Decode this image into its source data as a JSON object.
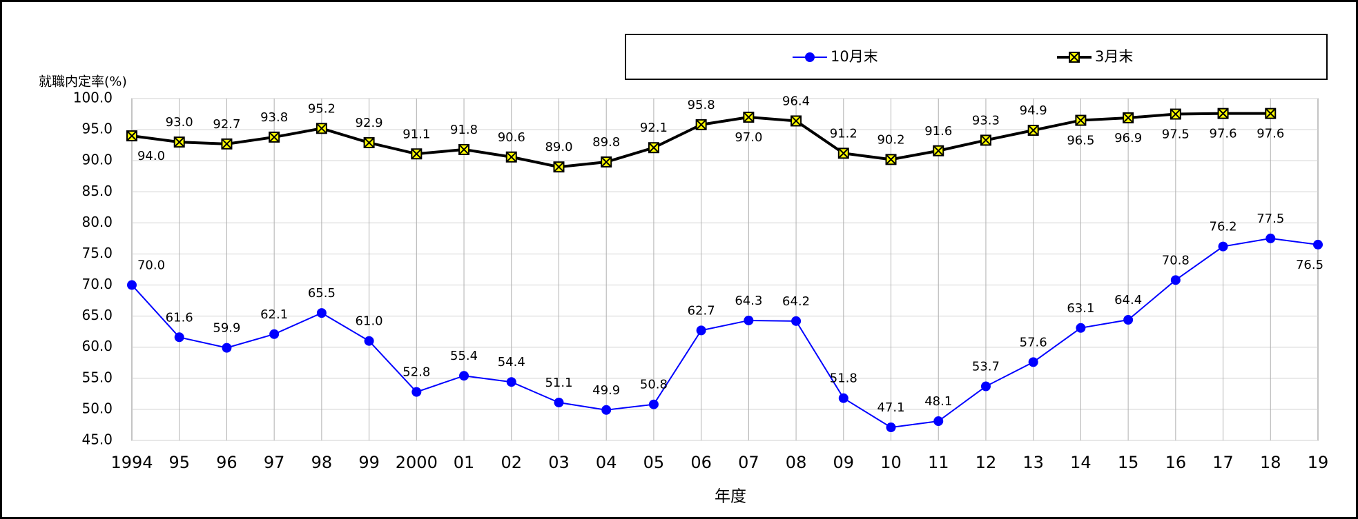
{
  "chart_data": {
    "type": "line",
    "y_label": "就職内定率(%)",
    "x_label": "年度",
    "categories": [
      "1994",
      "95",
      "96",
      "97",
      "98",
      "99",
      "2000",
      "01",
      "02",
      "03",
      "04",
      "05",
      "06",
      "07",
      "08",
      "09",
      "10",
      "11",
      "12",
      "13",
      "14",
      "15",
      "16",
      "17",
      "18",
      "19"
    ],
    "series": [
      {
        "name": "10月末",
        "color": "#0000ff",
        "marker": "circle",
        "values": [
          70.0,
          61.6,
          59.9,
          62.1,
          65.5,
          61.0,
          52.8,
          55.4,
          54.4,
          51.1,
          49.9,
          50.8,
          62.7,
          64.3,
          64.2,
          51.8,
          47.1,
          48.1,
          53.7,
          57.6,
          63.1,
          64.4,
          70.8,
          76.2,
          77.5,
          76.5
        ],
        "value_labels": [
          "70.0",
          "61.6",
          "59.9",
          "62.1",
          "65.5",
          "61.0",
          "52.8",
          "55.4",
          "54.4",
          "51.1",
          "49.9",
          "50.8",
          "62.7",
          "64.3",
          "64.2",
          "51.8",
          "47.1",
          "48.1",
          "53.7",
          "57.6",
          "63.1",
          "64.4",
          "70.8",
          "76.2",
          "77.5",
          "76.5"
        ]
      },
      {
        "name": "3月末",
        "color": "#000000",
        "marker": "x-square",
        "marker_fill": "#ffff00",
        "values": [
          94.0,
          93.0,
          92.7,
          93.8,
          95.2,
          92.9,
          91.1,
          91.8,
          90.6,
          89.0,
          89.8,
          92.1,
          95.8,
          97.0,
          96.4,
          91.2,
          90.2,
          91.6,
          93.3,
          94.9,
          96.5,
          96.9,
          97.5,
          97.6,
          97.6,
          null
        ],
        "value_labels": [
          "94.0",
          "93.0",
          "92.7",
          "93.8",
          "95.2",
          "92.9",
          "91.1",
          "91.8",
          "90.6",
          "89.0",
          "89.8",
          "92.1",
          "95.8",
          "97.0",
          "96.4",
          "91.2",
          "90.2",
          "91.6",
          "93.3",
          "94.9",
          "96.5",
          "96.9",
          "97.5",
          "97.6",
          "97.6",
          null
        ]
      }
    ],
    "ylim": [
      45,
      100
    ],
    "yticks": [
      {
        "value": 45,
        "label": "45.0"
      },
      {
        "value": 50,
        "label": "50.0"
      },
      {
        "value": 55,
        "label": "55.0"
      },
      {
        "value": 60,
        "label": "60.0"
      },
      {
        "value": 65,
        "label": "65.0"
      },
      {
        "value": 70,
        "label": "70.0"
      },
      {
        "value": 75,
        "label": "75.0"
      },
      {
        "value": 80,
        "label": "80.0"
      },
      {
        "value": 85,
        "label": "85.0"
      },
      {
        "value": 90,
        "label": "90.0"
      },
      {
        "value": 95,
        "label": "95.0"
      },
      {
        "value": 100,
        "label": "100.0"
      }
    ],
    "grid": true,
    "legend": "top-right"
  }
}
